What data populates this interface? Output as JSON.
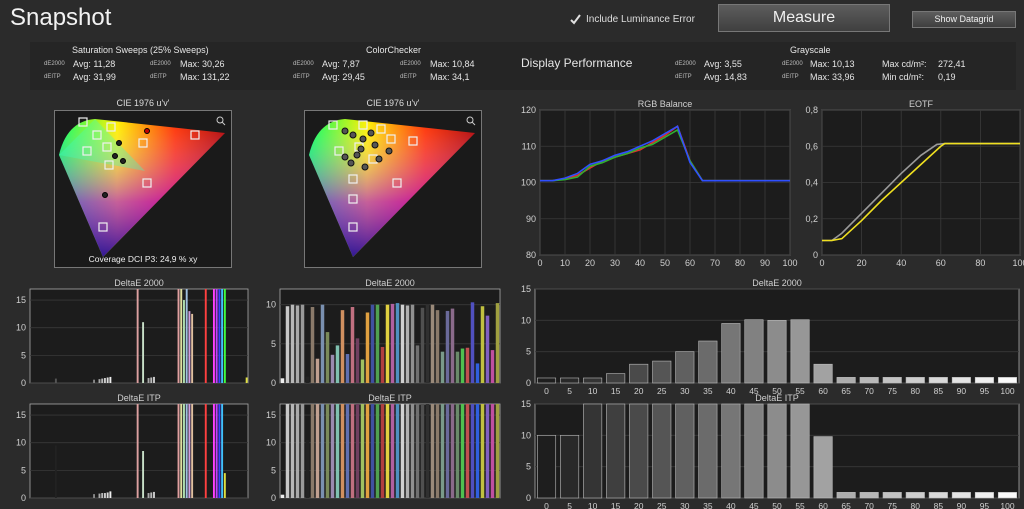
{
  "header": {
    "title": "Snapshot",
    "include_luminance_label": "Include Luminance Error",
    "include_luminance_checked": true,
    "measure_label": "Measure",
    "show_datagrid_label": "Show Datagrid"
  },
  "performance": {
    "title": "Display Performance",
    "saturation": {
      "title": "Saturation Sweeps (25% Sweeps)",
      "de2000": "dE2000",
      "deitp": "dEITP",
      "avg2000": "Avg: 11,28",
      "max2000": "Max: 30,26",
      "avgitp": "Avg: 31,99",
      "maxitp": "Max: 131,22"
    },
    "colorchecker": {
      "title": "ColorChecker",
      "de2000": "dE2000",
      "deitp": "dEITP",
      "avg2000": "Avg: 7,87",
      "max2000": "Max: 10,84",
      "avgitp": "Avg: 29,45",
      "maxitp": "Max: 34,1"
    },
    "grayscale": {
      "title": "Grayscale",
      "de2000": "dE2000",
      "deitp": "dEITP",
      "avg2000": "Avg: 3,55",
      "max2000": "Max: 10,13",
      "avgitp": "Avg: 14,83",
      "maxitp": "Max: 33,96",
      "maxcd_label": "Max cd/m²:",
      "maxcd": "272,41",
      "mincd_label": "Min cd/m²:",
      "mincd": "0,19"
    }
  },
  "cie": {
    "left_title": "CIE 1976 u'v'",
    "right_title": "CIE 1976 u'v'",
    "coverage": "Coverage DCI P3:  24,9 % xy",
    "zoom_icon": "magnifier-icon"
  },
  "chart_data": [
    {
      "id": "rgb",
      "type": "line",
      "title": "RGB Balance",
      "xlim": [
        0,
        100
      ],
      "ylim": [
        80,
        120
      ],
      "xticks": [
        "0",
        "10",
        "20",
        "30",
        "40",
        "50",
        "60",
        "70",
        "80",
        "90",
        "100"
      ],
      "yticks": [
        "80",
        "90",
        "100",
        "110",
        "120"
      ],
      "x": [
        0,
        5,
        10,
        15,
        20,
        25,
        30,
        35,
        40,
        45,
        50,
        55,
        60,
        65,
        70,
        75,
        80,
        85,
        90,
        95,
        100
      ],
      "series": [
        {
          "color": "#e03030",
          "values": [
            100.5,
            100.5,
            101,
            102,
            104,
            106,
            107,
            108,
            109,
            111,
            113,
            115.5,
            106,
            100.5,
            100.5,
            100.5,
            100.5,
            100.5,
            100.5,
            100.5,
            100.5
          ]
        },
        {
          "color": "#30b030",
          "values": [
            100.5,
            100.5,
            100.8,
            101.5,
            104.5,
            105.5,
            107,
            108,
            109.5,
            110.5,
            112.5,
            114.5,
            106,
            100.5,
            100.5,
            100.5,
            100.5,
            100.5,
            100.5,
            100.5,
            100.5
          ]
        },
        {
          "color": "#3050ff",
          "values": [
            100.5,
            100.5,
            101.2,
            102.5,
            105,
            106,
            107.5,
            108.5,
            110,
            111.5,
            113.5,
            115.5,
            105.5,
            100.5,
            100.5,
            100.5,
            100.5,
            100.5,
            100.5,
            100.5,
            100.5
          ]
        }
      ]
    },
    {
      "id": "eotf",
      "type": "line",
      "title": "EOTF",
      "xlim": [
        0,
        100
      ],
      "ylim": [
        0,
        0.8
      ],
      "xticks": [
        "0",
        "20",
        "40",
        "60",
        "80",
        "100"
      ],
      "yticks": [
        "0",
        "0,2",
        "0,4",
        "0,6",
        "0,8"
      ],
      "series": [
        {
          "color": "#9a9a9a",
          "x": [
            0,
            5,
            10,
            20,
            30,
            40,
            50,
            58,
            62,
            100
          ],
          "values": [
            0.08,
            0.08,
            0.12,
            0.23,
            0.34,
            0.45,
            0.55,
            0.61,
            0.615,
            0.615
          ]
        },
        {
          "color": "#f0e020",
          "x": [
            0,
            5,
            10,
            20,
            30,
            40,
            50,
            60,
            62,
            100
          ],
          "values": [
            0.08,
            0.08,
            0.09,
            0.19,
            0.3,
            0.4,
            0.5,
            0.6,
            0.615,
            0.615
          ]
        }
      ]
    },
    {
      "id": "sat2000",
      "type": "bar",
      "title": "DeltaE 2000",
      "ylim": [
        0,
        17
      ],
      "yticks": [
        "0",
        "5",
        "10",
        "15"
      ],
      "values": [
        0,
        0,
        0,
        0,
        0,
        0,
        0,
        0,
        0,
        0.8,
        0,
        0,
        0,
        0,
        0,
        0,
        0,
        0,
        0,
        0,
        0,
        0,
        0,
        0.6,
        0,
        0.7,
        0.8,
        0.9,
        1,
        1.1,
        0,
        0,
        0,
        0,
        0,
        0,
        0,
        0,
        0,
        17,
        0,
        11,
        0,
        0.9,
        1,
        1.1,
        0,
        0,
        0,
        0,
        0,
        0,
        0,
        0,
        17,
        17,
        15,
        17,
        13,
        12.5,
        0,
        0,
        0,
        0,
        17,
        0,
        0,
        17,
        17,
        17,
        17,
        17,
        0,
        0,
        0,
        0,
        0,
        0,
        0,
        1
      ],
      "colors": [
        "#666",
        "#666",
        "#666",
        "#666",
        "#666",
        "#666",
        "#666",
        "#666",
        "#666",
        "#555",
        "#666",
        "#666",
        "#666",
        "#666",
        "#666",
        "#666",
        "#666",
        "#666",
        "#666",
        "#666",
        "#666",
        "#666",
        "#666",
        "#888",
        "#666",
        "#aaa",
        "#bbb",
        "#ccc",
        "#ddd",
        "#eee",
        "#666",
        "#666",
        "#666",
        "#666",
        "#666",
        "#666",
        "#666",
        "#666",
        "#666",
        "#dca0a0",
        "#666",
        "#c8e0c8",
        "#666",
        "#aaa",
        "#bbb",
        "#ccc",
        "#666",
        "#666",
        "#666",
        "#666",
        "#666",
        "#666",
        "#666",
        "#666",
        "#e0a0a0",
        "#e0e0a0",
        "#b0e0b0",
        "#a0c0e0",
        "#d0a0e0",
        "#e0c0a0",
        "#666",
        "#666",
        "#666",
        "#666",
        "#ff4040",
        "#666",
        "#666",
        "#ff40ff",
        "#c040ff",
        "#4040ff",
        "#40c0ff",
        "#40ff40",
        "#666",
        "#666",
        "#666",
        "#666",
        "#666",
        "#666",
        "#666",
        "#e0e040"
      ]
    },
    {
      "id": "satitp",
      "type": "bar",
      "title": "DeltaE ITP",
      "ylim": [
        0,
        17
      ],
      "yticks": [
        "0",
        "5",
        "10",
        "15"
      ],
      "values": [
        0,
        0,
        0,
        0,
        0,
        0,
        0,
        0,
        0,
        9.5,
        0,
        0,
        0,
        0,
        0,
        0,
        0,
        0,
        0,
        0,
        0,
        0,
        0,
        0.7,
        0,
        0.8,
        0.9,
        0.9,
        1,
        1.2,
        0,
        0,
        0,
        0,
        0,
        0,
        0,
        0,
        0,
        17,
        0,
        8.5,
        0,
        0.9,
        1,
        1.1,
        0,
        0,
        0,
        0,
        0,
        0,
        0,
        0,
        17,
        17,
        17,
        17,
        17,
        17,
        0,
        0,
        0,
        0,
        17,
        0,
        0,
        17,
        17,
        17,
        17,
        4.5,
        0,
        0,
        0,
        0,
        0,
        0,
        0,
        0
      ],
      "colors": [
        "#666",
        "#666",
        "#666",
        "#666",
        "#666",
        "#666",
        "#666",
        "#666",
        "#666",
        "#222",
        "#666",
        "#666",
        "#666",
        "#666",
        "#666",
        "#666",
        "#666",
        "#666",
        "#666",
        "#666",
        "#666",
        "#666",
        "#666",
        "#888",
        "#666",
        "#aaa",
        "#bbb",
        "#ccc",
        "#ddd",
        "#eee",
        "#666",
        "#666",
        "#666",
        "#666",
        "#666",
        "#666",
        "#666",
        "#666",
        "#666",
        "#dca0a0",
        "#666",
        "#c8e0c8",
        "#666",
        "#aaa",
        "#bbb",
        "#ccc",
        "#666",
        "#666",
        "#666",
        "#666",
        "#666",
        "#666",
        "#666",
        "#666",
        "#e0a0a0",
        "#e0e0a0",
        "#b0e0b0",
        "#a0c0e0",
        "#d0a0e0",
        "#e0c0a0",
        "#666",
        "#666",
        "#666",
        "#666",
        "#ff4040",
        "#666",
        "#666",
        "#ff40ff",
        "#c040ff",
        "#4040ff",
        "#40c0ff",
        "#e0e040",
        "#666",
        "#666",
        "#666",
        "#666",
        "#666",
        "#666",
        "#666",
        "#666"
      ]
    },
    {
      "id": "cc2000",
      "type": "bar",
      "title": "DeltaE 2000",
      "ylim": [
        0,
        12
      ],
      "yticks": [
        "0",
        "5",
        "10"
      ],
      "values": [
        0.6,
        9.8,
        10,
        9.9,
        10,
        0.8,
        9.7,
        3.1,
        10,
        6.5,
        3.6,
        4.8,
        9.3,
        3.7,
        9.7,
        5.7,
        3,
        9,
        10,
        10,
        4.6,
        10,
        10.1,
        10.2,
        10,
        9.9,
        10,
        4.8,
        9.6,
        10,
        10,
        9.3,
        4,
        9.2,
        9.5,
        4,
        4.4,
        4.5,
        10.3,
        2.5,
        9.8,
        8.6,
        4.2,
        10.2
      ],
      "colors": [
        "#eee",
        "#c8c8c8",
        "#b8b8b8",
        "#aaa",
        "#999",
        "#222",
        "#8a7a6a",
        "#c0a090",
        "#7a90b0",
        "#7a8a5a",
        "#9a8ab0",
        "#80c0b0",
        "#d09060",
        "#6070b0",
        "#c07080",
        "#704060",
        "#a0c060",
        "#e0a040",
        "#4050a0",
        "#50a050",
        "#b04040",
        "#e0d040",
        "#b060a0",
        "#5090c0",
        "#d0d0d0",
        "#b0b0b0",
        "#909090",
        "#707070",
        "#505050",
        "#303030",
        "#9a8a7a",
        "#8a7a6a",
        "#7a9a8a",
        "#6a6a9a",
        "#8a6a8a",
        "#6a8a6a",
        "#50c050",
        "#c05050",
        "#5050c0",
        "#3060e0",
        "#c0c040",
        "#8060c0",
        "#c050a0",
        "#a0a040"
      ]
    },
    {
      "id": "ccitp",
      "type": "bar",
      "title": "DeltaE ITP",
      "ylim": [
        0,
        17
      ],
      "yticks": [
        "0",
        "5",
        "10",
        "15"
      ],
      "values": [
        0.6,
        17,
        17,
        17,
        17,
        10.5,
        17,
        17,
        17,
        17,
        17,
        17,
        17,
        17,
        17,
        17,
        17,
        17,
        17,
        17,
        17,
        17,
        17,
        17,
        17,
        17,
        17,
        17,
        17,
        17,
        17,
        17,
        17,
        17,
        17,
        17,
        17,
        17,
        17,
        17,
        17,
        17,
        17,
        17
      ],
      "colors": [
        "#eee",
        "#c8c8c8",
        "#b8b8b8",
        "#aaa",
        "#999",
        "#222",
        "#8a7a6a",
        "#c0a090",
        "#7a90b0",
        "#7a8a5a",
        "#9a8ab0",
        "#80c0b0",
        "#d09060",
        "#6070b0",
        "#c07080",
        "#704060",
        "#a0c060",
        "#e0a040",
        "#4050a0",
        "#50a050",
        "#b04040",
        "#e0d040",
        "#b060a0",
        "#5090c0",
        "#d0d0d0",
        "#b0b0b0",
        "#909090",
        "#707070",
        "#505050",
        "#303030",
        "#9a8a7a",
        "#8a7a6a",
        "#7a9a8a",
        "#6a6a9a",
        "#8a6a8a",
        "#6a8a6a",
        "#50c050",
        "#c05050",
        "#5050c0",
        "#3060e0",
        "#c0c040",
        "#8060c0",
        "#c050a0",
        "#a0a040"
      ]
    },
    {
      "id": "gray2000",
      "type": "bar",
      "title": "DeltaE 2000",
      "ylim": [
        0,
        15
      ],
      "yticks": [
        "0",
        "5",
        "10",
        "15"
      ],
      "categories": [
        "0",
        "5",
        "10",
        "15",
        "20",
        "25",
        "30",
        "35",
        "40",
        "45",
        "50",
        "55",
        "60",
        "65",
        "70",
        "75",
        "80",
        "85",
        "90",
        "95",
        "100"
      ],
      "values": [
        0.8,
        0.8,
        0.8,
        1.5,
        3,
        3.5,
        5,
        6.7,
        9.5,
        10.1,
        10,
        10.1,
        3,
        0.9,
        0.9,
        0.9,
        0.9,
        0.9,
        0.9,
        0.9,
        0.9
      ]
    },
    {
      "id": "grayitp",
      "type": "bar",
      "title": "DeltaE ITP",
      "ylim": [
        0,
        15
      ],
      "yticks": [
        "0",
        "5",
        "10",
        "15"
      ],
      "categories": [
        "0",
        "5",
        "10",
        "15",
        "20",
        "25",
        "30",
        "35",
        "40",
        "45",
        "50",
        "55",
        "60",
        "65",
        "70",
        "75",
        "80",
        "85",
        "90",
        "95",
        "100"
      ],
      "values": [
        10,
        10,
        15,
        15,
        15,
        15,
        15,
        15,
        15,
        15,
        15,
        15,
        9.8,
        0.9,
        0.9,
        0.9,
        0.9,
        0.9,
        0.9,
        0.9,
        0.9
      ]
    }
  ]
}
